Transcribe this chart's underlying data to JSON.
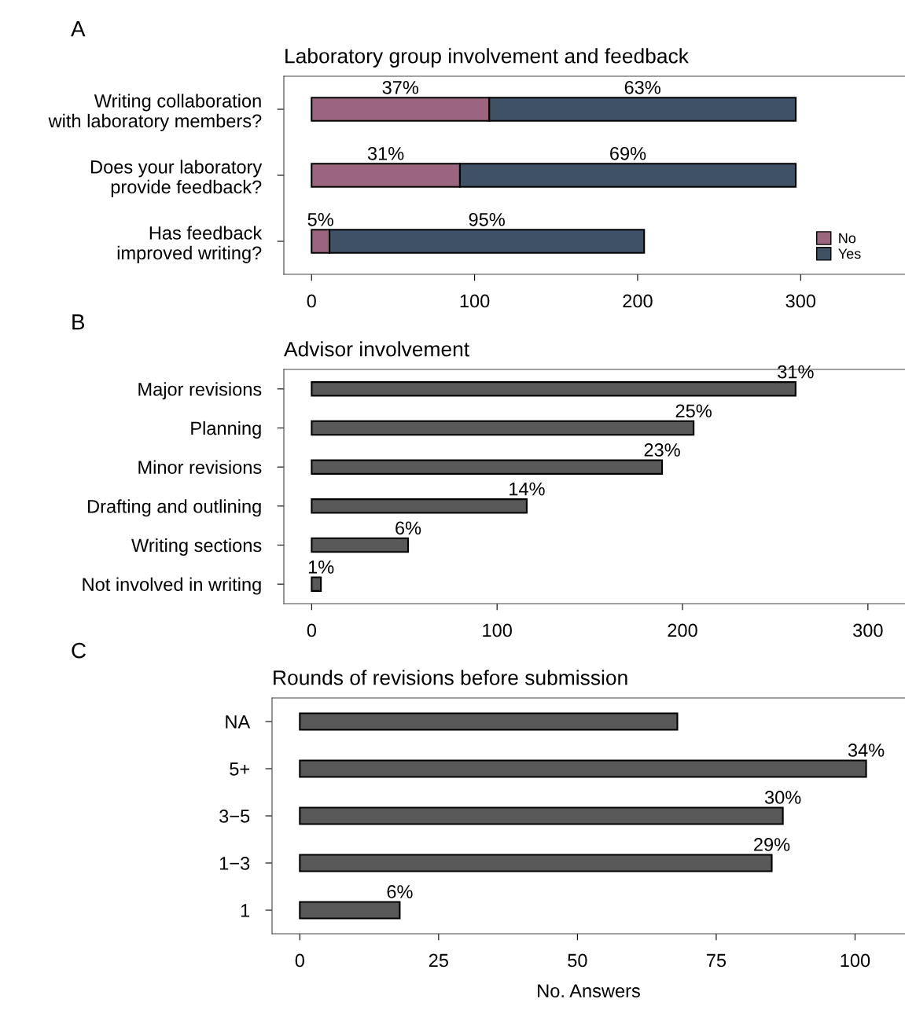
{
  "chart_data": [
    {
      "type": "bar",
      "orientation": "horizontal",
      "stacked": true,
      "title": "Laboratory group involvement and feedback",
      "categories": [
        "Writing collaboration\nwith laboratory members?",
        "Does your laboratory\nprovide feedback?",
        "Has feedback\nimproved writing?"
      ],
      "series": [
        {
          "name": "No",
          "color": "#9b647f",
          "values": [
            109,
            91,
            11
          ]
        },
        {
          "name": "Yes",
          "color": "#3f5165",
          "values": [
            188,
            206,
            193
          ]
        }
      ],
      "annotations": [
        "A",
        "37%",
        "63%",
        "31%",
        "69%",
        "5%",
        "95%"
      ],
      "xlim": [
        -17,
        364
      ],
      "xticks": [
        0,
        100,
        200,
        300
      ],
      "legend": "bottom right",
      "grid": false
    },
    {
      "type": "bar",
      "orientation": "horizontal",
      "title": "Advisor involvement",
      "categories": [
        "Major revisions",
        "Planning",
        "Minor revisions",
        "Drafting and outlining",
        "Writing sections",
        "Not involved in writing"
      ],
      "color": "#595959",
      "values": [
        261,
        206,
        189,
        116,
        52,
        5
      ],
      "annotations": [
        "B",
        {
          "text": "31%",
          "x": 261,
          "y": "Major revisions"
        },
        {
          "text": "25%",
          "x": 206,
          "y": "Planning"
        },
        {
          "text": "23%",
          "x": 189,
          "y": "Minor revisions"
        },
        {
          "text": "14%",
          "x": 116,
          "y": "Drafting and outlining"
        },
        {
          "text": "6%",
          "x": 52,
          "y": "Writing sections"
        },
        {
          "text": "1%",
          "x": 5,
          "y": "Not involved in writing"
        }
      ],
      "xlim": [
        -15,
        320
      ],
      "xticks": [
        0,
        100,
        200,
        300
      ],
      "grid": false,
      "legend": false
    },
    {
      "type": "bar",
      "orientation": "horizontal",
      "title": "Rounds of revisions before submission",
      "xlabel": "No. Answers",
      "categories": [
        "NA",
        "5+",
        "3−5",
        "1−3",
        "1"
      ],
      "color": "#595959",
      "values": [
        68,
        102,
        87,
        85,
        18
      ],
      "annotations": [
        "C",
        {
          "text": "34%",
          "x": 102,
          "y": "5+"
        },
        {
          "text": "30%",
          "x": 87,
          "y": "3−5"
        },
        {
          "text": "29%",
          "x": 85,
          "y": "1−3"
        },
        {
          "text": "6%",
          "x": 18,
          "y": "1"
        }
      ],
      "xlim": [
        -5,
        109
      ],
      "xticks": [
        0,
        25,
        50,
        75,
        100
      ],
      "grid": false,
      "legend": false
    }
  ]
}
